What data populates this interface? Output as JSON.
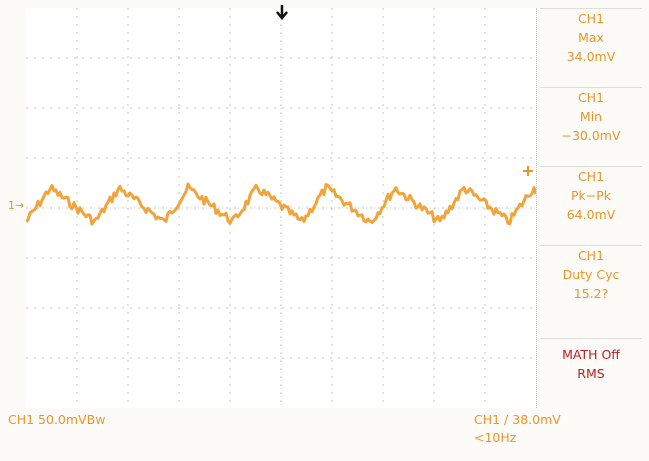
{
  "ui": {
    "channel_color": "#e8962b",
    "math_color": "#b82025",
    "grid_color": "#c9c4bc",
    "trace_color": "#f0a43a"
  },
  "markers": {
    "channel_marker": "1→",
    "trigger_icon": "trigger-position-arrow-icon",
    "level_icon": "trigger-level-icon"
  },
  "measurements": [
    {
      "source": "CH1",
      "name": "Max",
      "value": "34.0mV"
    },
    {
      "source": "CH1",
      "name": "Min",
      "value": "−30.0mV"
    },
    {
      "source": "CH1",
      "name": "Pk−Pk",
      "value": "64.0mV"
    },
    {
      "source": "CH1",
      "name": "Duty Cyc",
      "value": "15.2?"
    }
  ],
  "math_menu": {
    "line1": "MATH Off",
    "line2": "RMS"
  },
  "status": {
    "ch1_scale": "CH1  50.0mVBw",
    "trigger": "CH1  /  38.0mV",
    "frequency": "<10Hz"
  }
}
